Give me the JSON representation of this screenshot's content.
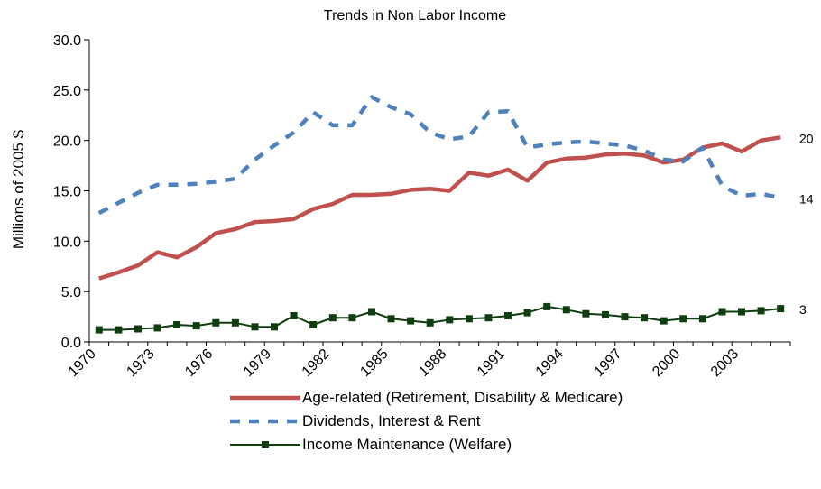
{
  "chart_data": {
    "type": "line",
    "title": "Trends in Non Labor Income",
    "ylabel": "Millions of 2005 $",
    "xlabel": "",
    "ylim": [
      0,
      30
    ],
    "yticks": [
      "0.0",
      "5.0",
      "10.0",
      "15.0",
      "20.0",
      "25.0",
      "30.0"
    ],
    "ytick_values": [
      0,
      5,
      10,
      15,
      20,
      25,
      30
    ],
    "xticks": [
      "1970",
      "1973",
      "1976",
      "1979",
      "1982",
      "1985",
      "1988",
      "1991",
      "1994",
      "1997",
      "2000",
      "2003"
    ],
    "x": [
      1970,
      1971,
      1972,
      1973,
      1974,
      1975,
      1976,
      1977,
      1978,
      1979,
      1980,
      1981,
      1982,
      1983,
      1984,
      1985,
      1986,
      1987,
      1988,
      1989,
      1990,
      1991,
      1992,
      1993,
      1994,
      1995,
      1996,
      1997,
      1998,
      1999,
      2000,
      2001,
      2002,
      2003,
      2004,
      2005
    ],
    "grid": false,
    "legend_position": "bottom",
    "series": [
      {
        "name": "Age-related (Retirement, Disability & Medicare)",
        "color": "#C0504D",
        "style": "solid",
        "end_label": "20",
        "values": [
          6.3,
          6.9,
          7.6,
          8.9,
          8.4,
          9.4,
          10.8,
          11.2,
          11.9,
          12.0,
          12.2,
          13.2,
          13.7,
          14.6,
          14.6,
          14.7,
          15.1,
          15.2,
          15.0,
          16.8,
          16.5,
          17.1,
          16.0,
          17.8,
          18.2,
          18.3,
          18.6,
          18.7,
          18.5,
          17.8,
          18.1,
          19.3,
          19.7,
          18.9,
          20.0,
          20.3
        ]
      },
      {
        "name": "Dividends, Interest & Rent",
        "color": "#4F81BD",
        "style": "dashed",
        "end_label": "14",
        "values": [
          12.8,
          13.8,
          14.8,
          15.6,
          15.6,
          15.7,
          15.9,
          16.2,
          18.1,
          19.5,
          20.8,
          22.8,
          21.5,
          21.5,
          24.3,
          23.3,
          22.6,
          20.8,
          20.1,
          20.4,
          22.8,
          22.9,
          19.3,
          19.6,
          19.8,
          19.9,
          19.7,
          19.5,
          19.0,
          18.1,
          17.9,
          19.3,
          15.5,
          14.5,
          14.7,
          14.3
        ]
      },
      {
        "name": "Income Maintenance (Welfare)",
        "color": "#0F3D0F",
        "style": "solid-square-markers",
        "end_label": "3",
        "values": [
          1.2,
          1.2,
          1.3,
          1.4,
          1.7,
          1.6,
          1.9,
          1.9,
          1.5,
          1.5,
          2.6,
          1.7,
          2.4,
          2.4,
          3.0,
          2.3,
          2.1,
          1.9,
          2.2,
          2.3,
          2.4,
          2.6,
          2.9,
          3.5,
          3.2,
          2.8,
          2.7,
          2.5,
          2.4,
          2.1,
          2.3,
          2.3,
          3.0,
          3.0,
          3.1,
          3.3
        ]
      }
    ]
  }
}
